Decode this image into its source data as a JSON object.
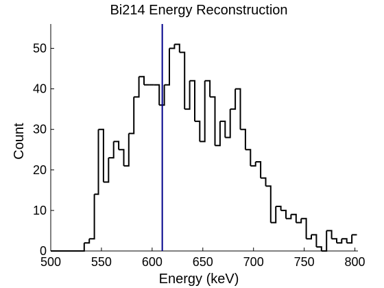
{
  "chart_data": {
    "type": "histogram",
    "title": "Bi214 Energy Reconstruction",
    "xlabel": "Energy (keV)",
    "ylabel": "Count",
    "xlim": [
      500,
      803
    ],
    "ylim": [
      0,
      56
    ],
    "xticks": [
      500,
      550,
      600,
      650,
      700,
      750,
      800
    ],
    "yticks": [
      0,
      10,
      20,
      30,
      40,
      50
    ],
    "grid": false,
    "legend": "none",
    "bin_edges": [
      500,
      533,
      538,
      543,
      547,
      552,
      557,
      562,
      567,
      572,
      577,
      582,
      587,
      592,
      597,
      602,
      607,
      612,
      617,
      622,
      627,
      632,
      637,
      642,
      647,
      652,
      657,
      662,
      667,
      672,
      677,
      682,
      687,
      692,
      697,
      702,
      707,
      712,
      717,
      722,
      727,
      732,
      737,
      742,
      747,
      752,
      757,
      762,
      767,
      772,
      777,
      782,
      787,
      792,
      797,
      802
    ],
    "counts": [
      0,
      2,
      3,
      14,
      30,
      17,
      23,
      27,
      25,
      21,
      29,
      38,
      43,
      41,
      41,
      41,
      36,
      41,
      50,
      51,
      49,
      35,
      42,
      32,
      27,
      42,
      38,
      26,
      32,
      28,
      35,
      40,
      30,
      25,
      21,
      22,
      18,
      16,
      7,
      11,
      10,
      8,
      9,
      7,
      8,
      3,
      4,
      1,
      0,
      5,
      3,
      2,
      3,
      2,
      4
    ],
    "reference_line": {
      "x": 610,
      "color": "#00008b"
    },
    "line_color": "#000000"
  }
}
